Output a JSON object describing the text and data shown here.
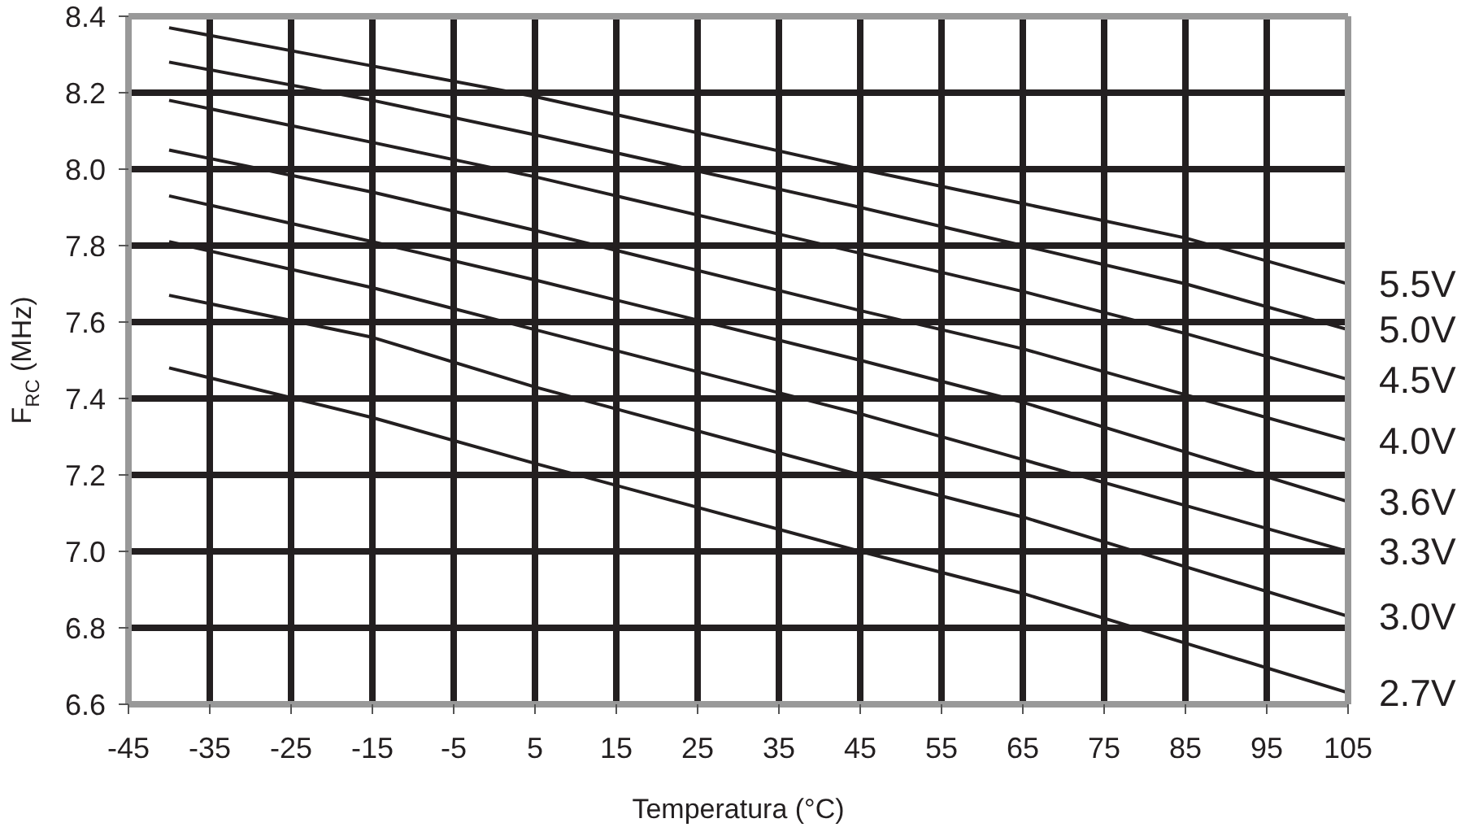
{
  "chart_data": {
    "type": "line",
    "xlabel": "Temperatura (°C)",
    "ylabel": "F$_{RC}$ (MHz)",
    "x": [
      -40,
      -15,
      5,
      45,
      65,
      85,
      105
    ],
    "series": [
      {
        "name": "5.5V",
        "color": "#231f20",
        "values": [
          8.37,
          8.27,
          8.19,
          8.0,
          7.91,
          7.82,
          7.7
        ]
      },
      {
        "name": "5.0V",
        "color": "#231f20",
        "values": [
          8.28,
          8.18,
          8.09,
          7.9,
          7.8,
          7.7,
          7.58
        ]
      },
      {
        "name": "4.5V",
        "color": "#231f20",
        "values": [
          8.18,
          8.07,
          7.98,
          7.78,
          7.68,
          7.57,
          7.45
        ]
      },
      {
        "name": "4.0V",
        "color": "#231f20",
        "values": [
          8.05,
          7.94,
          7.84,
          7.63,
          7.53,
          7.41,
          7.29
        ]
      },
      {
        "name": "3.6V",
        "color": "#231f20",
        "values": [
          7.93,
          7.81,
          7.71,
          7.5,
          7.39,
          7.26,
          7.13
        ]
      },
      {
        "name": "3.3V",
        "color": "#231f20",
        "values": [
          7.81,
          7.69,
          7.58,
          7.36,
          7.24,
          7.12,
          7.0
        ]
      },
      {
        "name": "3.0V",
        "color": "#231f20",
        "values": [
          7.67,
          7.56,
          7.43,
          7.2,
          7.09,
          6.96,
          6.83
        ]
      },
      {
        "name": "2.7V",
        "color": "#231f20",
        "values": [
          7.48,
          7.35,
          7.23,
          7.0,
          6.89,
          6.76,
          6.63
        ]
      }
    ],
    "xlim": [
      -45,
      105
    ],
    "xticks": [
      -45,
      -35,
      -25,
      -15,
      -5,
      5,
      15,
      25,
      35,
      45,
      55,
      65,
      75,
      85,
      95,
      105
    ],
    "ylim": [
      6.6,
      8.4
    ],
    "yticks": [
      6.6,
      6.8,
      {
        "value": 7,
        "label": "7.0"
      },
      7.2,
      7.4,
      7.6,
      7.8,
      {
        "value": 8,
        "label": "8.0"
      },
      8.2,
      8.4
    ],
    "grid": true,
    "marker": "none",
    "line_style": "solid"
  }
}
